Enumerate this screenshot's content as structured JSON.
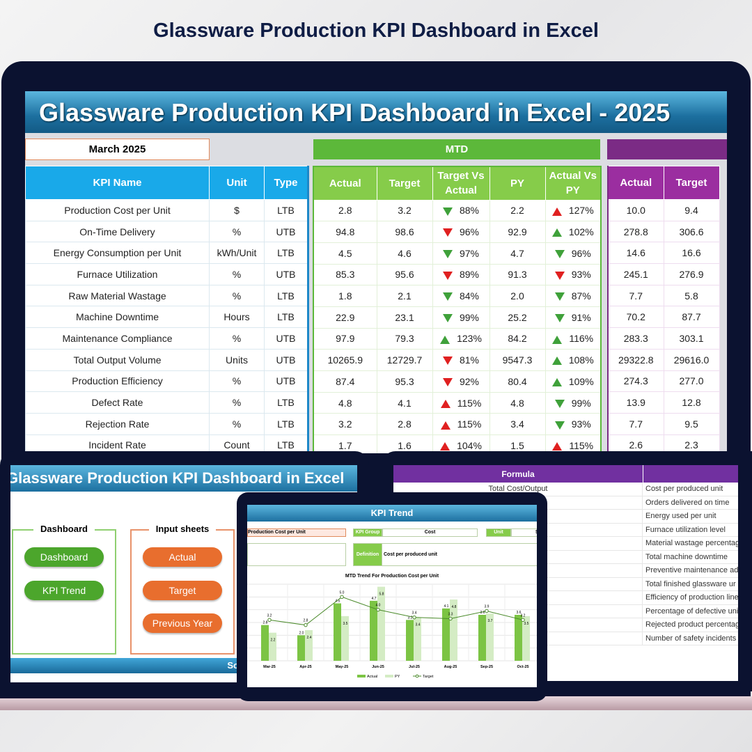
{
  "page_title": "Glassware Production KPI Dashboard in Excel",
  "dashboard": {
    "banner": "Glassware Production KPI Dashboard in Excel - 2025",
    "month": "March 2025",
    "mtd_label": "MTD",
    "kpi_headers": [
      "KPI Name",
      "Unit",
      "Type"
    ],
    "mtd_headers": [
      "Actual",
      "Target",
      "Target Vs Actual",
      "PY",
      "Actual Vs PY"
    ],
    "ytd_headers": [
      "Actual",
      "Target"
    ],
    "colors": {
      "header_blue": "#19a9e9",
      "mtd_green": "#5cb83a",
      "ytd_purple": "#9b2ea0",
      "good": "#3fa13a",
      "bad": "#e02020"
    },
    "rows": [
      {
        "name": "Production Cost per Unit",
        "unit": "$",
        "type": "LTB",
        "actual": "2.8",
        "target": "3.2",
        "tva_icon": "down-green",
        "tva": "88%",
        "py": "2.2",
        "avpy_icon": "up-red",
        "avpy": "127%",
        "ytd_actual": "10.0",
        "ytd_target": "9.4"
      },
      {
        "name": "On-Time Delivery",
        "unit": "%",
        "type": "UTB",
        "actual": "94.8",
        "target": "98.6",
        "tva_icon": "down-red",
        "tva": "96%",
        "py": "92.9",
        "avpy_icon": "up-green",
        "avpy": "102%",
        "ytd_actual": "278.8",
        "ytd_target": "306.6"
      },
      {
        "name": "Energy Consumption per Unit",
        "unit": "kWh/Unit",
        "type": "LTB",
        "actual": "4.5",
        "target": "4.6",
        "tva_icon": "down-green",
        "tva": "97%",
        "py": "4.7",
        "avpy_icon": "down-green",
        "avpy": "96%",
        "ytd_actual": "14.6",
        "ytd_target": "16.6"
      },
      {
        "name": "Furnace Utilization",
        "unit": "%",
        "type": "UTB",
        "actual": "85.3",
        "target": "95.6",
        "tva_icon": "down-red",
        "tva": "89%",
        "py": "91.3",
        "avpy_icon": "down-red",
        "avpy": "93%",
        "ytd_actual": "245.1",
        "ytd_target": "276.9"
      },
      {
        "name": "Raw Material Wastage",
        "unit": "%",
        "type": "LTB",
        "actual": "1.8",
        "target": "2.1",
        "tva_icon": "down-green",
        "tva": "84%",
        "py": "2.0",
        "avpy_icon": "down-green",
        "avpy": "87%",
        "ytd_actual": "7.7",
        "ytd_target": "5.8"
      },
      {
        "name": "Machine Downtime",
        "unit": "Hours",
        "type": "LTB",
        "actual": "22.9",
        "target": "23.1",
        "tva_icon": "down-green",
        "tva": "99%",
        "py": "25.2",
        "avpy_icon": "down-green",
        "avpy": "91%",
        "ytd_actual": "70.2",
        "ytd_target": "87.7"
      },
      {
        "name": "Maintenance Compliance",
        "unit": "%",
        "type": "UTB",
        "actual": "97.9",
        "target": "79.3",
        "tva_icon": "up-green",
        "tva": "123%",
        "py": "84.2",
        "avpy_icon": "up-green",
        "avpy": "116%",
        "ytd_actual": "283.3",
        "ytd_target": "303.1"
      },
      {
        "name": "Total Output Volume",
        "unit": "Units",
        "type": "UTB",
        "actual": "10265.9",
        "target": "12729.7",
        "tva_icon": "down-red",
        "tva": "81%",
        "py": "9547.3",
        "avpy_icon": "up-green",
        "avpy": "108%",
        "ytd_actual": "29322.8",
        "ytd_target": "29616.0"
      },
      {
        "name": "Production Efficiency",
        "unit": "%",
        "type": "UTB",
        "actual": "87.4",
        "target": "95.3",
        "tva_icon": "down-red",
        "tva": "92%",
        "py": "80.4",
        "avpy_icon": "up-green",
        "avpy": "109%",
        "ytd_actual": "274.3",
        "ytd_target": "277.0"
      },
      {
        "name": "Defect Rate",
        "unit": "%",
        "type": "LTB",
        "actual": "4.8",
        "target": "4.1",
        "tva_icon": "up-red",
        "tva": "115%",
        "py": "4.8",
        "avpy_icon": "down-green",
        "avpy": "99%",
        "ytd_actual": "13.9",
        "ytd_target": "12.8"
      },
      {
        "name": "Rejection Rate",
        "unit": "%",
        "type": "LTB",
        "actual": "3.2",
        "target": "2.8",
        "tva_icon": "up-red",
        "tva": "115%",
        "py": "3.4",
        "avpy_icon": "down-green",
        "avpy": "93%",
        "ytd_actual": "7.7",
        "ytd_target": "9.5"
      },
      {
        "name": "Incident Rate",
        "unit": "Count",
        "type": "LTB",
        "actual": "1.7",
        "target": "1.6",
        "tva_icon": "up-red",
        "tva": "104%",
        "py": "1.5",
        "avpy_icon": "up-red",
        "avpy": "115%",
        "ytd_actual": "2.6",
        "ytd_target": "2.3"
      }
    ]
  },
  "home": {
    "banner": "Glassware Production KPI Dashboard in Excel",
    "dashboard_group": "Dashboard",
    "input_group": "Input sheets",
    "buttons_dashboard": [
      "Dashboard",
      "KPI Trend"
    ],
    "buttons_input": [
      "Actual",
      "Target",
      "Previous Year"
    ],
    "footer": "So"
  },
  "formula_sheet": {
    "header": "Formula",
    "first_formula": "Total Cost/Output",
    "definitions": [
      "Cost per produced unit",
      "Orders delivered on time",
      "Energy used per unit",
      "Furnace utilization level",
      "Material wastage percentag",
      "Total machine downtime",
      "Preventive maintenance ad",
      "Total finished glassware ur",
      "Efficiency of production line",
      "Percentage of defective unit",
      "Rejected product percentag",
      "Number of safety incidents"
    ]
  },
  "trend": {
    "title": "KPI Trend",
    "kpi": "Production Cost per Unit",
    "kpi_group_label": "KPI Group",
    "kpi_group": "Cost",
    "unit_label": "Unit",
    "unit": "$",
    "definition_label": "Definition",
    "definition": "Cost per produced unit"
  },
  "chart_data": {
    "type": "bar",
    "title": "MTD Trend For Production Cost per Unit",
    "categories": [
      "Mar-25",
      "Apr-25",
      "May-25",
      "Jun-25",
      "Jul-25",
      "Aug-25",
      "Sep-25",
      "Oct-25"
    ],
    "series": [
      {
        "name": "Actual",
        "type": "bar",
        "color": "#7cc444",
        "values": [
          2.8,
          2.0,
          4.5,
          4.7,
          3.2,
          4.1,
          3.6,
          3.6
        ]
      },
      {
        "name": "PY",
        "type": "bar",
        "color": "#d4ecc4",
        "values": [
          2.2,
          2.4,
          3.5,
          5.8,
          3.4,
          4.8,
          3.7,
          3.5
        ]
      },
      {
        "name": "Target",
        "type": "line",
        "color": "#4a8a2a",
        "values": [
          3.2,
          2.8,
          5.0,
          4.0,
          3.4,
          3.3,
          3.9,
          3.2
        ]
      }
    ],
    "ylim": [
      0,
      6
    ],
    "grid": true,
    "legend": "bottom"
  }
}
